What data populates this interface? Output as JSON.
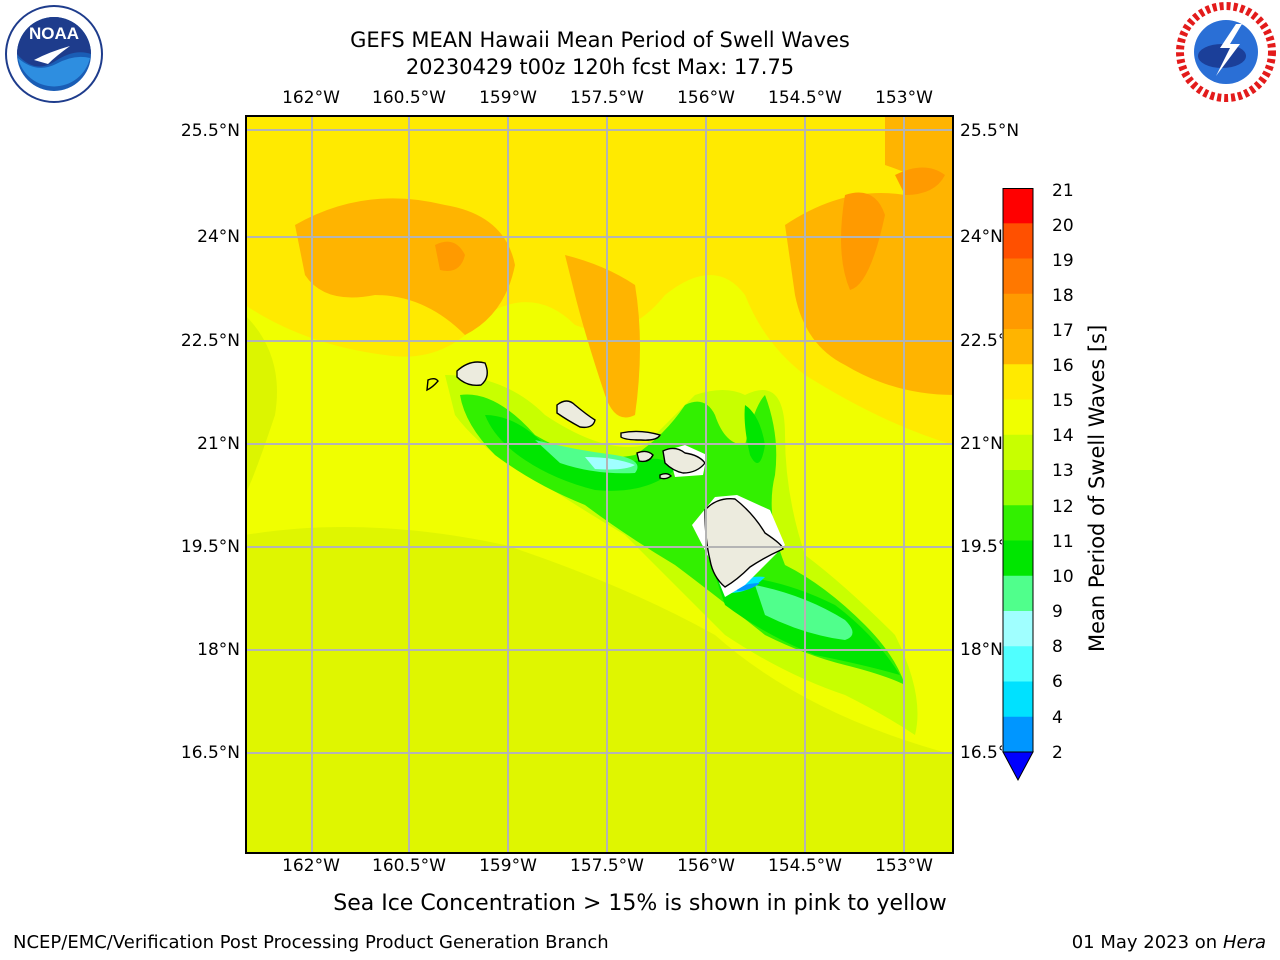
{
  "title": {
    "line1": "GEFS MEAN Hawaii Mean Period of Swell Waves",
    "line2": "20230429 t00z 120h fcst   Max: 17.75"
  },
  "map": {
    "lon_ticks": [
      "162°W",
      "160.5°W",
      "159°W",
      "157.5°W",
      "156°W",
      "154.5°W",
      "153°W"
    ],
    "lat_ticks": [
      "25.5°N",
      "24°N",
      "22.5°N",
      "21°N",
      "19.5°N",
      "18°N",
      "16.5°N"
    ],
    "lat_ticks_right": [
      "25.5°N",
      "24°N",
      "22.5°N",
      "21°N",
      "19.5°N",
      "18°N",
      "16.5°N"
    ],
    "grid_color": "#b4b4b4",
    "land_color": "#ecebde"
  },
  "colorbar": {
    "title": "Mean Period of Swell Waves [s]",
    "levels": [
      "21",
      "20",
      "19",
      "18",
      "17",
      "16",
      "15",
      "14",
      "13",
      "12",
      "11",
      "10",
      "9",
      "8",
      "6",
      "4",
      "2"
    ],
    "colors": [
      "#ff0000",
      "#ff2800",
      "#ff5000",
      "#ff7800",
      "#ff9a00",
      "#ffb400",
      "#ffea00",
      "#f0ff00",
      "#c8ff00",
      "#96ff00",
      "#32f000",
      "#00e600",
      "#50ff8c",
      "#a0ffff",
      "#50ffff",
      "#00e1ff",
      "#0096ff",
      "#0050ff"
    ],
    "extend_color": "#0000ff"
  },
  "footer": {
    "note": "Sea Ice Concentration > 15% is shown in pink to yellow",
    "credit_left": "NCEP/EMC/Verification Post Processing Product Generation Branch",
    "credit_right_prefix": "01 May 2023 on",
    "credit_right_host": "Hera"
  },
  "logos": {
    "noaa_text": "NOAA",
    "noaa_ring_text": "NATIONAL OCEANIC AND ATMOSPHERIC ADMINISTRATION · U.S. DEPARTMENT OF COMMERCE",
    "nws_ring_text": "NATIONAL WEATHER SERVICE"
  }
}
